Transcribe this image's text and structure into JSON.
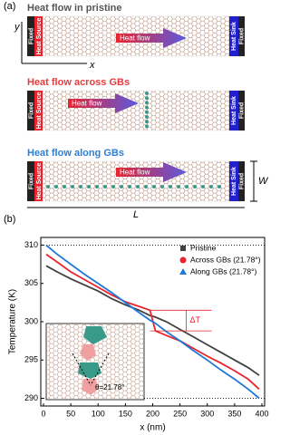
{
  "panel_a": {
    "label": "(a)",
    "titles": [
      "Heat flow in pristine",
      "Heat flow across GBs",
      "Heat flow along GBs"
    ],
    "title_colors": [
      "#555555",
      "#e8393d",
      "#2a7fd6"
    ],
    "arrow_label": "Heat flow",
    "fixed": "Fixed",
    "heat_source": "Heat Source",
    "heat_sink": "Heat Sink",
    "axis_x": "x",
    "axis_y": "y",
    "width": "W",
    "length": "L"
  },
  "chart_data": {
    "type": "line",
    "label": "(b)",
    "x_label": "x (nm)",
    "y_label": "Temperature (K)",
    "x": [
      5,
      25,
      50,
      75,
      100,
      125,
      150,
      175,
      195,
      205,
      225,
      250,
      275,
      300,
      325,
      350,
      375,
      395
    ],
    "series": [
      {
        "name": "Pristine",
        "color": "#404040",
        "marker": "square",
        "values": [
          307.3,
          306.5,
          305.6,
          304.8,
          304.0,
          303.0,
          302.2,
          301.5,
          300.8,
          300.6,
          300.0,
          299.0,
          298.0,
          297.0,
          296.0,
          295.0,
          294.0,
          293.0
        ]
      },
      {
        "name": "Across GBs (21.78°)",
        "color": "#e8242f",
        "marker": "circle",
        "values": [
          308.8,
          307.8,
          306.5,
          305.5,
          304.5,
          303.5,
          302.6,
          302.0,
          301.5,
          298.8,
          298.2,
          297.5,
          296.5,
          295.5,
          294.6,
          293.6,
          292.5,
          291.2
        ]
      },
      {
        "name": "Along GBs (21.78°)",
        "color": "#1e78d7",
        "marker": "triangle",
        "values": [
          310.0,
          308.8,
          307.5,
          306.2,
          305.0,
          303.8,
          302.5,
          301.2,
          300.2,
          299.8,
          298.7,
          297.5,
          296.2,
          295.0,
          293.7,
          292.5,
          291.2,
          290.0
        ]
      }
    ],
    "xlim": [
      -5,
      405
    ],
    "ylim": [
      289,
      311
    ],
    "xticks": [
      0,
      50,
      100,
      150,
      200,
      250,
      300,
      350,
      400
    ],
    "yticks": [
      290,
      295,
      300,
      305,
      310
    ],
    "hlines": [
      290,
      310
    ],
    "legend": "upper right",
    "delta_label": "ΔT",
    "theta_label": "θ=21.78°"
  }
}
